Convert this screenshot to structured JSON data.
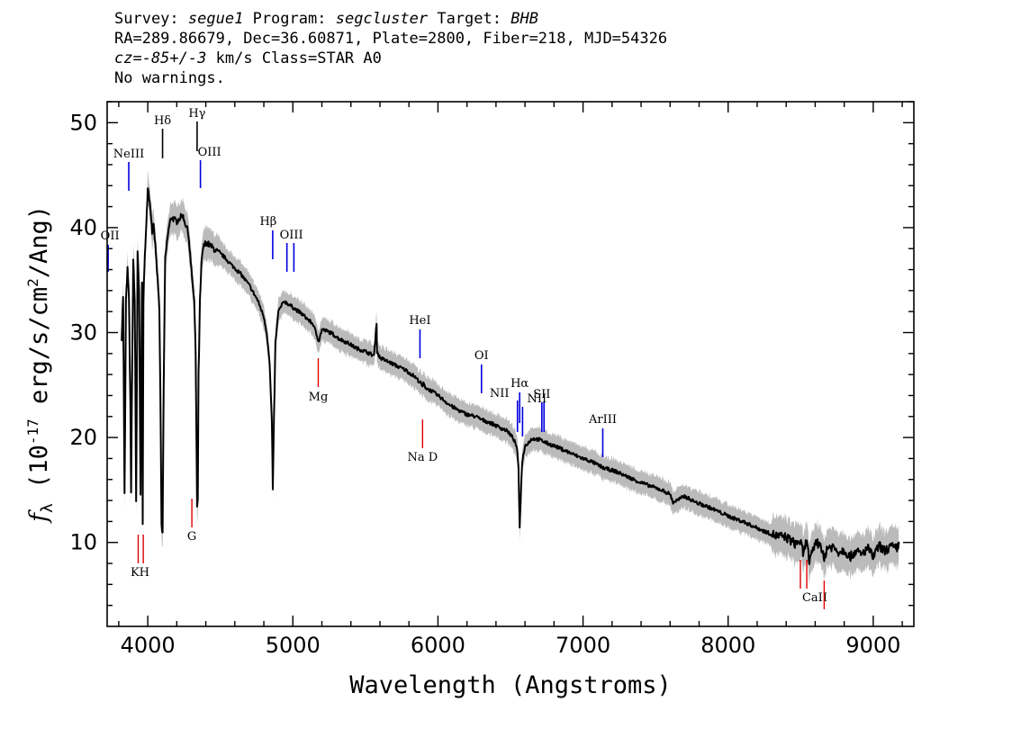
{
  "header": {
    "survey_label": "Survey:",
    "survey": "segue1",
    "program_label": "Program:",
    "program": "segcluster",
    "target_label": "Target:",
    "target": "BHB",
    "line2": "RA=289.86679, Dec=36.60871, Plate=2800, Fiber=218, MJD=54326",
    "redshift": "cz=-85+/-3",
    "redshift_unit": "km/s",
    "class_text": "Class=STAR A0",
    "warnings": "No warnings."
  },
  "chart_data": {
    "type": "line",
    "xlabel": "Wavelength (Angstroms)",
    "ylabel": "fλ (10-17 erg/s/cm2/Ang)",
    "xlim": [
      3720,
      9280
    ],
    "ylim": [
      2,
      52
    ],
    "xticks": [
      4000,
      5000,
      6000,
      7000,
      8000,
      9000
    ],
    "yticks": [
      10,
      20,
      30,
      40,
      50
    ],
    "grid": false,
    "series": [
      {
        "color": "#000000",
        "error_band_color": "#bbbbbb",
        "x": [
          3820,
          3830,
          3840,
          3850,
          3860,
          3870,
          3880,
          3885,
          3890,
          3900,
          3910,
          3920,
          3930,
          3940,
          3950,
          3960,
          3965,
          3970,
          3980,
          3990,
          4000,
          4010,
          4020,
          4030,
          4040,
          4060,
          4080,
          4090,
          4095,
          4102,
          4110,
          4120,
          4140,
          4160,
          4200,
          4240,
          4280,
          4300,
          4320,
          4330,
          4340,
          4345,
          4350,
          4360,
          4370,
          4380,
          4400,
          4430,
          4470,
          4520,
          4580,
          4640,
          4700,
          4760,
          4800,
          4820,
          4840,
          4855,
          4862,
          4870,
          4880,
          4900,
          4940,
          5000,
          5060,
          5100,
          5140,
          5170,
          5180,
          5200,
          5260,
          5320,
          5380,
          5440,
          5500,
          5560,
          5577,
          5580,
          5600,
          5660,
          5720,
          5780,
          5840,
          5880,
          5893,
          5900,
          5920,
          5960,
          6020,
          6080,
          6140,
          6200,
          6260,
          6300,
          6360,
          6420,
          6480,
          6520,
          6545,
          6555,
          6563,
          6570,
          6580,
          6600,
          6650,
          6700,
          6760,
          6820,
          6900,
          6980,
          7060,
          7140,
          7220,
          7300,
          7380,
          7460,
          7540,
          7600,
          7620,
          7700,
          7780,
          7860,
          7940,
          8020,
          8100,
          8180,
          8260,
          8340,
          8400,
          8460,
          8498,
          8520,
          8542,
          8560,
          8600,
          8640,
          8662,
          8680,
          8720,
          8760,
          8800,
          8840,
          8880,
          8920,
          8960,
          9000,
          9040,
          9080,
          9120,
          9160,
          9180
        ],
        "y": [
          29.5,
          33.5,
          14.5,
          33,
          36,
          33.5,
          23.5,
          14.5,
          23,
          37,
          33,
          14,
          37.5,
          34,
          14.5,
          35,
          12,
          33,
          37.5,
          40,
          44,
          42.5,
          41.8,
          39.7,
          40.5,
          37,
          32,
          20,
          11.5,
          10.8,
          25,
          37,
          39.5,
          41,
          40.6,
          41.2,
          39.5,
          36,
          33,
          28,
          13.5,
          14,
          26,
          33,
          36.5,
          38,
          38.6,
          38.3,
          37.8,
          37.3,
          36.4,
          35.6,
          34.5,
          33,
          31.5,
          30,
          27,
          21.5,
          15.2,
          22,
          29,
          32,
          33,
          32.4,
          31.8,
          31.3,
          30.8,
          29.5,
          29.2,
          30.3,
          30,
          29.4,
          29,
          28.5,
          28.2,
          27.8,
          31,
          28.2,
          27.6,
          27.2,
          26.8,
          26.4,
          25.8,
          25.2,
          24.8,
          25.1,
          24.7,
          24.4,
          23.8,
          23.1,
          22.6,
          22.2,
          22,
          21.7,
          21.4,
          21,
          20.6,
          19.9,
          19,
          17,
          11.5,
          14,
          17.7,
          19.2,
          19.9,
          19.8,
          19.4,
          19.1,
          18.6,
          18.1,
          17.7,
          17.1,
          16.8,
          16.3,
          15.8,
          15.4,
          15,
          14.6,
          13.8,
          14.4,
          13.8,
          13.4,
          12.9,
          12.4,
          12,
          11.5,
          11,
          10.6,
          10.5,
          9.9,
          10.1,
          8.8,
          10.4,
          8,
          10,
          9.8,
          8.2,
          9.5,
          9.6,
          9.1,
          9.3,
          8.6,
          9.2,
          8.8,
          9.5,
          8.6,
          9.7,
          9.2,
          9.6,
          9.4,
          9.9
        ]
      }
    ],
    "emission_lines": [
      {
        "label": "NeIII",
        "wavelength": 3869,
        "color": "#0000dd"
      },
      {
        "label": "OII",
        "wavelength": 3727,
        "color": "#0000dd"
      },
      {
        "label": "Hδ",
        "wavelength": 4102,
        "color": "#000000"
      },
      {
        "label": "Hγ",
        "wavelength": 4340,
        "color": "#000000"
      },
      {
        "label": "OIII",
        "wavelength": 4363,
        "color": "#0000dd"
      },
      {
        "label": "Hβ",
        "wavelength": 4861,
        "color": "#0000dd"
      },
      {
        "label": "OIII",
        "wavelength": 4959,
        "color": "#0000dd"
      },
      {
        "label": "OIII",
        "wavelength": 5007,
        "color": "#0000dd"
      },
      {
        "label": "HeI",
        "wavelength": 5876,
        "color": "#0000dd"
      },
      {
        "label": "OI",
        "wavelength": 6300,
        "color": "#0000dd"
      },
      {
        "label": "NII",
        "wavelength": 6548,
        "color": "#0000dd"
      },
      {
        "label": "Hα",
        "wavelength": 6563,
        "color": "#0000dd"
      },
      {
        "label": "NII",
        "wavelength": 6583,
        "color": "#0000dd"
      },
      {
        "label": "SII",
        "wavelength": 6716,
        "color": "#0000dd"
      },
      {
        "label": "SII",
        "wavelength": 6731,
        "color": "#0000dd"
      },
      {
        "label": "ArIII",
        "wavelength": 7136,
        "color": "#0000dd"
      }
    ],
    "absorption_lines": [
      {
        "label": "K",
        "wavelength": 3934,
        "color": "#dd0000"
      },
      {
        "label": "H",
        "wavelength": 3969,
        "color": "#dd0000"
      },
      {
        "label": "G",
        "wavelength": 4304,
        "color": "#dd0000"
      },
      {
        "label": "Mg",
        "wavelength": 5175,
        "color": "#dd0000"
      },
      {
        "label": "Na D",
        "wavelength": 5894,
        "color": "#dd0000"
      },
      {
        "label": "CaII",
        "wavelength": 8498,
        "color": "#dd0000"
      },
      {
        "label": "CaII",
        "wavelength": 8542,
        "color": "#dd0000"
      },
      {
        "label": "CaII",
        "wavelength": 8662,
        "color": "#dd0000"
      }
    ]
  }
}
